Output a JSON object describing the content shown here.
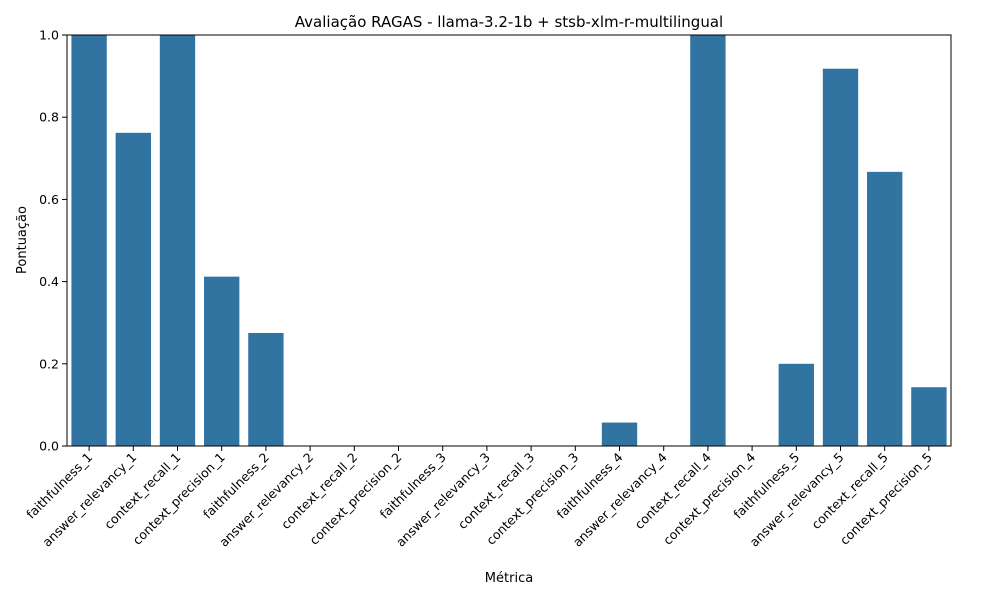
{
  "chart_data": {
    "type": "bar",
    "title": "Avaliação RAGAS - llama-3.2-1b + stsb-xlm-r-multilingual",
    "xlabel": "Métrica",
    "ylabel": "Pontuação",
    "ylim": [
      0,
      1.0
    ],
    "yticks": [
      "0.0",
      "0.2",
      "0.4",
      "0.6",
      "0.8",
      "1.0"
    ],
    "bar_color": "#3274a1",
    "grid": false,
    "categories": [
      "faithfulness_1",
      "answer_relevancy_1",
      "context_recall_1",
      "context_precision_1",
      "faithfulness_2",
      "answer_relevancy_2",
      "context_recall_2",
      "context_precision_2",
      "faithfulness_3",
      "answer_relevancy_3",
      "context_recall_3",
      "context_precision_3",
      "faithfulness_4",
      "answer_relevancy_4",
      "context_recall_4",
      "context_precision_4",
      "faithfulness_5",
      "answer_relevancy_5",
      "context_recall_5",
      "context_precision_5"
    ],
    "values": [
      1.0,
      0.762,
      1.0,
      0.412,
      0.275,
      0.0,
      0.0,
      0.0,
      0.0,
      0.0,
      0.0,
      0.0,
      0.057,
      0.0,
      1.0,
      0.0,
      0.2,
      0.918,
      0.667,
      0.143
    ]
  }
}
